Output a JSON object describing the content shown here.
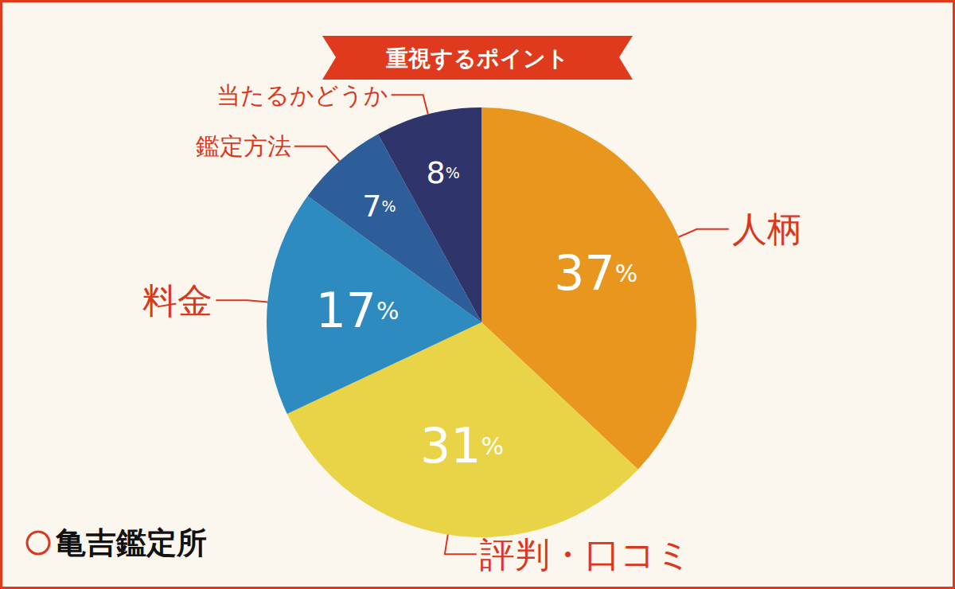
{
  "chart_data": {
    "type": "pie",
    "title": "重視するポイント",
    "categories": [
      "人柄",
      "評判・口コミ",
      "料金",
      "鑑定方法",
      "当たるかどうか"
    ],
    "values": [
      37,
      31,
      17,
      7,
      8
    ],
    "value_labels": [
      "37%",
      "31%",
      "17%",
      "7%",
      "8%"
    ],
    "colors": [
      "#E8961E",
      "#E9D448",
      "#2E8BBF",
      "#2E5E99",
      "#2F346A"
    ],
    "data_labels": true,
    "annotations": [
      "亀吉鑑定所"
    ]
  }
}
